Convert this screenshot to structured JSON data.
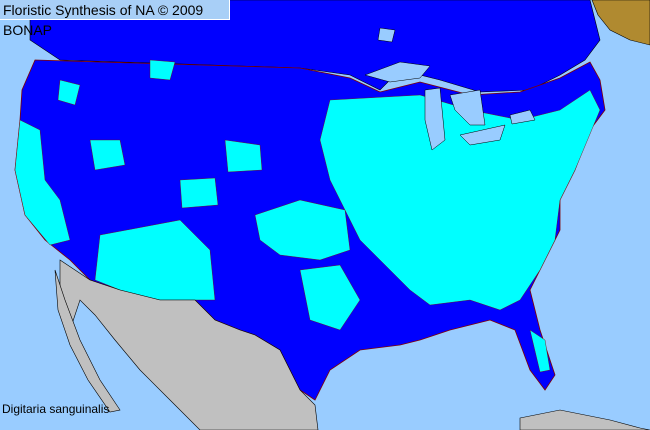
{
  "header": {
    "title": "Floristic Synthesis of NA © 2009 BONAP"
  },
  "map": {
    "species_label": "Digitaria sanguinalis",
    "colors": {
      "ocean": "#99ccff",
      "present_in_state": "#0000ff",
      "present_in_county": "#00ffff",
      "outside_area": "#c0c0c0",
      "other_region": "#b08a30",
      "county_borders": "#800000"
    }
  }
}
